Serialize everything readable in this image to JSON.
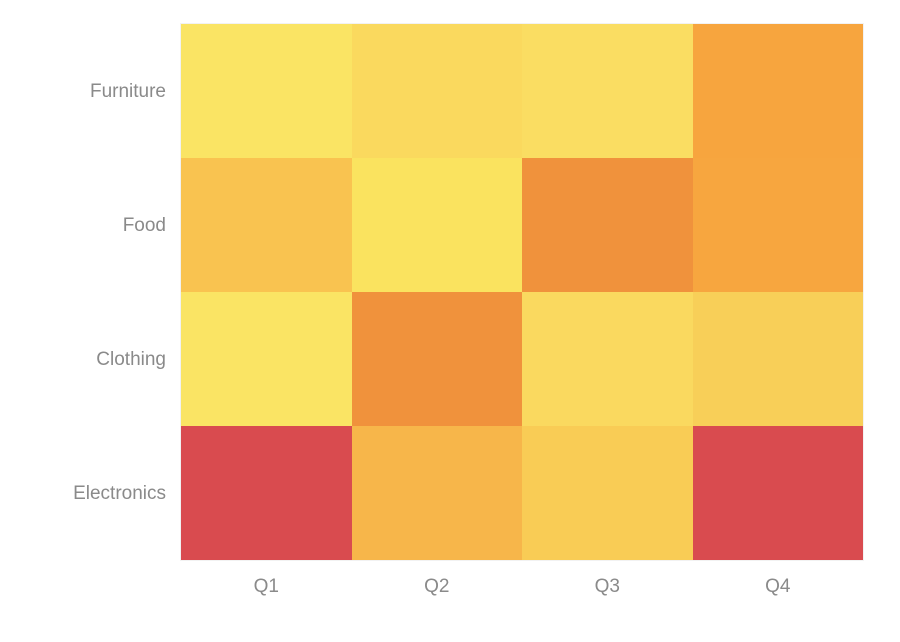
{
  "chart_data": {
    "type": "heatmap",
    "title": "",
    "xlabel": "",
    "ylabel": "",
    "legend": "none",
    "grid": "off",
    "categories": [
      "Q1",
      "Q2",
      "Q3",
      "Q4"
    ],
    "rows": [
      {
        "label": "Furniture",
        "colors": [
          "#FAE464",
          "#FAD95E",
          "#FADD62",
          "#F7A53E"
        ],
        "estimated_values": [
          10,
          18,
          15,
          52
        ]
      },
      {
        "label": "Food",
        "colors": [
          "#F9C350",
          "#FAE35F",
          "#F0923C",
          "#F7A63F"
        ],
        "estimated_values": [
          32,
          10,
          62,
          50
        ]
      },
      {
        "label": "Clothing",
        "colors": [
          "#FAE464",
          "#F0923C",
          "#FAD95F",
          "#F8CF58"
        ],
        "estimated_values": [
          10,
          62,
          18,
          25
        ]
      },
      {
        "label": "Electronics",
        "colors": [
          "#D94B4F",
          "#F7B64A",
          "#F9CC55",
          "#D94B4F"
        ],
        "estimated_values": [
          98,
          40,
          28,
          98
        ]
      }
    ],
    "colorscale": {
      "low_color": "#FAE464",
      "mid_color": "#F7A53E",
      "high_color": "#D94B4F",
      "meaning": "low=light-yellow, high=red"
    },
    "axis_label_color": "#8a8a8a",
    "background_color": "#ffffff"
  }
}
